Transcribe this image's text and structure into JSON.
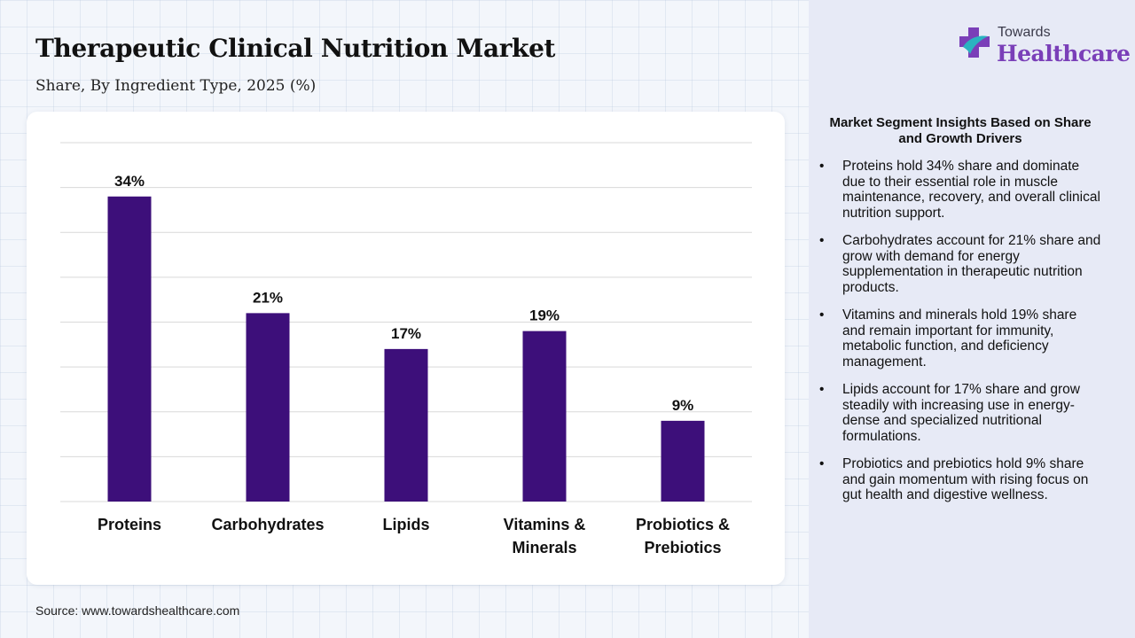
{
  "header": {
    "title": "Therapeutic Clinical Nutrition Market",
    "subtitle": "Share, By Ingredient Type, 2025 (%)"
  },
  "logo": {
    "word1": "Towards",
    "word2": "Healthcare"
  },
  "colors": {
    "bar": "#3d0f7a",
    "panel": "#e7eaf6",
    "logo_accent": "#7a3fb8",
    "logo_teal": "#2bb3c0"
  },
  "chart_data": {
    "type": "bar",
    "categories": [
      "Proteins",
      "Carbohydrates",
      "Lipids",
      "Vitamins & Minerals",
      "Probiotics & Prebiotics"
    ],
    "category_lines": [
      [
        "Proteins"
      ],
      [
        "Carbohydrates"
      ],
      [
        "Lipids"
      ],
      [
        "Vitamins &",
        "Minerals"
      ],
      [
        "Probiotics &",
        "Prebiotics"
      ]
    ],
    "values": [
      34,
      21,
      17,
      19,
      9
    ],
    "data_labels": [
      "34%",
      "21%",
      "17%",
      "19%",
      "9%"
    ],
    "title": "Therapeutic Clinical Nutrition Market",
    "subtitle": "Share, By Ingredient Type, 2025 (%)",
    "xlabel": "",
    "ylabel": "",
    "ylim": [
      0,
      40
    ],
    "grid": true,
    "legend": "none"
  },
  "insights": {
    "title": "Market Segment Insights Based on Share and Growth Drivers",
    "bullet": "•",
    "items": [
      "Proteins hold 34% share and dominate due to their essential role in muscle maintenance, recovery, and overall clinical nutrition support.",
      "Carbohydrates account for 21% share and grow with demand for energy supplementation in therapeutic nutrition products.",
      "Vitamins and minerals hold 19% share and remain important for immunity, metabolic function, and deficiency management.",
      "Lipids account for 17% share and grow steadily with increasing use in energy-dense and specialized nutritional formulations.",
      "Probiotics and prebiotics hold 9% share and gain momentum with rising focus on gut health and digestive wellness."
    ]
  },
  "source": "Source: www.towardshealthcare.com"
}
